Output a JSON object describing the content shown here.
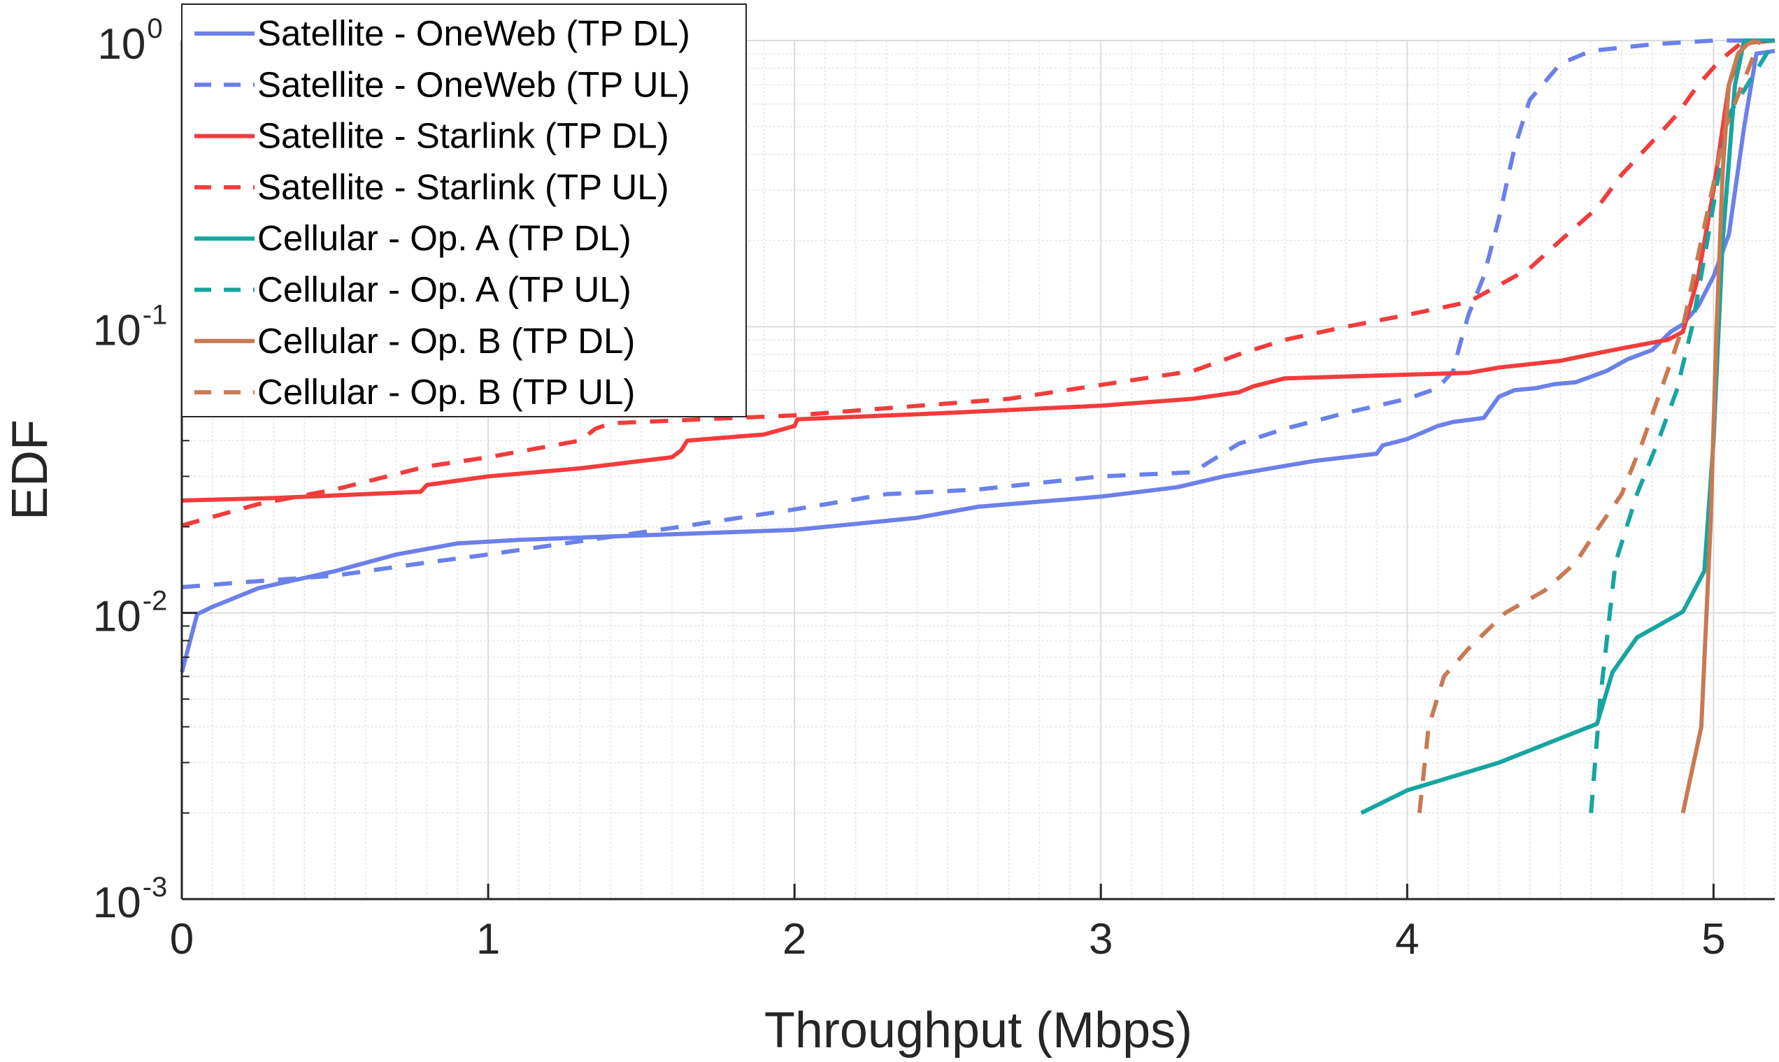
{
  "chart_data": {
    "type": "line",
    "title": "",
    "xlabel": "Throughput (Mbps)",
    "ylabel": "EDF",
    "xlim": [
      0,
      5.2
    ],
    "ylim": [
      0.001,
      1
    ],
    "yscale": "log",
    "grid": true,
    "legend_position": "top-left",
    "x_ticks": [
      {
        "value": 0,
        "label": "0"
      },
      {
        "value": 1,
        "label": "1"
      },
      {
        "value": 2,
        "label": "2"
      },
      {
        "value": 3,
        "label": "3"
      },
      {
        "value": 4,
        "label": "4"
      },
      {
        "value": 5,
        "label": "5"
      }
    ],
    "y_ticks": [
      {
        "value": 0.001,
        "base": "10",
        "exp": "-3"
      },
      {
        "value": 0.01,
        "base": "10",
        "exp": "-2"
      },
      {
        "value": 0.1,
        "base": "10",
        "exp": "-1"
      },
      {
        "value": 1,
        "base": "10",
        "exp": "0"
      }
    ],
    "series": [
      {
        "name": "Satellite - OneWeb (TP DL)",
        "color": "#6b80e8",
        "dash": "solid",
        "x": [
          0,
          0.03,
          0.05,
          0.1,
          0.25,
          0.5,
          0.7,
          0.9,
          1.1,
          1.4,
          1.7,
          2.0,
          2.4,
          2.6,
          3.0,
          3.25,
          3.4,
          3.7,
          3.9,
          3.92,
          4.0,
          4.1,
          4.15,
          4.25,
          4.3,
          4.35,
          4.42,
          4.48,
          4.55,
          4.65,
          4.72,
          4.8,
          4.86,
          4.9,
          4.95,
          5.0,
          5.05,
          5.1,
          5.14,
          5.2
        ],
        "y": [
          0.0062,
          0.0082,
          0.0099,
          0.0105,
          0.0122,
          0.014,
          0.016,
          0.0175,
          0.018,
          0.0185,
          0.019,
          0.0195,
          0.0215,
          0.0235,
          0.0255,
          0.0275,
          0.03,
          0.034,
          0.036,
          0.0385,
          0.0405,
          0.045,
          0.0465,
          0.048,
          0.057,
          0.06,
          0.061,
          0.063,
          0.064,
          0.07,
          0.077,
          0.083,
          0.096,
          0.102,
          0.118,
          0.15,
          0.21,
          0.5,
          0.9,
          0.92
        ]
      },
      {
        "name": "Satellite - OneWeb (TP UL)",
        "color": "#6b80e8",
        "dash": "dash",
        "x": [
          0,
          0.2,
          0.5,
          0.8,
          1.0,
          1.3,
          1.6,
          2.0,
          2.3,
          2.6,
          3.0,
          3.3,
          3.45,
          3.6,
          3.8,
          4.0,
          4.1,
          4.15,
          4.17,
          4.2,
          4.25,
          4.3,
          4.35,
          4.4,
          4.5,
          4.6,
          4.8,
          5.0,
          5.2
        ],
        "y": [
          0.0123,
          0.0128,
          0.0135,
          0.015,
          0.016,
          0.0178,
          0.0198,
          0.023,
          0.026,
          0.027,
          0.03,
          0.031,
          0.039,
          0.044,
          0.05,
          0.056,
          0.061,
          0.07,
          0.085,
          0.11,
          0.15,
          0.24,
          0.42,
          0.62,
          0.83,
          0.92,
          0.97,
          1.0,
          1.0
        ]
      },
      {
        "name": "Satellite - Starlink (TP DL)",
        "color": "#f23c3c",
        "dash": "solid",
        "x": [
          0,
          0.3,
          0.6,
          0.78,
          0.8,
          1.0,
          1.3,
          1.6,
          1.63,
          1.65,
          1.9,
          2.0,
          2.01,
          2.5,
          3.0,
          3.3,
          3.45,
          3.5,
          3.6,
          4.0,
          4.2,
          4.3,
          4.5,
          4.6,
          4.7,
          4.8,
          4.85,
          4.9,
          4.95,
          5.0,
          5.05,
          5.1,
          5.2
        ],
        "y": [
          0.0247,
          0.0252,
          0.026,
          0.0265,
          0.028,
          0.03,
          0.032,
          0.035,
          0.037,
          0.04,
          0.042,
          0.045,
          0.0475,
          0.05,
          0.053,
          0.056,
          0.059,
          0.062,
          0.066,
          0.068,
          0.069,
          0.072,
          0.076,
          0.08,
          0.084,
          0.088,
          0.09,
          0.096,
          0.15,
          0.3,
          0.7,
          0.98,
          1.0
        ]
      },
      {
        "name": "Satellite - Starlink (TP UL)",
        "color": "#f23c3c",
        "dash": "dash",
        "x": [
          0,
          0.25,
          0.5,
          0.8,
          1.0,
          1.3,
          1.35,
          1.4,
          2.0,
          2.7,
          3.3,
          3.45,
          3.6,
          3.8,
          4.0,
          4.2,
          4.4,
          4.5,
          4.62,
          4.7,
          4.78,
          4.88,
          4.95,
          5.02,
          5.1,
          5.2
        ],
        "y": [
          0.0202,
          0.024,
          0.027,
          0.0325,
          0.035,
          0.04,
          0.044,
          0.046,
          0.049,
          0.056,
          0.07,
          0.08,
          0.09,
          0.1,
          0.11,
          0.122,
          0.16,
          0.2,
          0.26,
          0.34,
          0.42,
          0.55,
          0.7,
          0.85,
          1.0,
          1.0
        ]
      },
      {
        "name": "Cellular - Op. A (TP DL)",
        "color": "#16a5a0",
        "dash": "solid",
        "x": [
          3.85,
          4.0,
          4.3,
          4.62,
          4.67,
          4.75,
          4.9,
          4.97,
          5.0,
          5.03,
          5.07,
          5.1,
          5.2
        ],
        "y": [
          0.002,
          0.0024,
          0.003,
          0.0041,
          0.0062,
          0.0082,
          0.0101,
          0.014,
          0.04,
          0.2,
          0.7,
          1.0,
          1.0
        ]
      },
      {
        "name": "Cellular - Op. A (TP UL)",
        "color": "#16a5a0",
        "dash": "dash",
        "x": [
          4.6,
          4.63,
          4.68,
          4.75,
          4.82,
          4.88,
          4.93,
          4.98,
          5.05,
          5.2
        ],
        "y": [
          0.002,
          0.005,
          0.015,
          0.026,
          0.04,
          0.06,
          0.1,
          0.2,
          0.55,
          1.0
        ]
      },
      {
        "name": "Cellular - Op. B (TP DL)",
        "color": "#c87a52",
        "dash": "solid",
        "x": [
          4.9,
          4.96,
          4.99,
          5.01,
          5.03,
          5.05,
          5.08,
          5.11,
          5.14
        ],
        "y": [
          0.002,
          0.004,
          0.02,
          0.1,
          0.35,
          0.7,
          0.9,
          0.97,
          1.0
        ]
      },
      {
        "name": "Cellular - Op. B (TP UL)",
        "color": "#c87a52",
        "dash": "dash",
        "x": [
          4.04,
          4.07,
          4.12,
          4.2,
          4.32,
          4.45,
          4.55,
          4.62,
          4.7,
          4.77,
          4.85,
          4.9,
          4.96,
          5.04,
          5.15
        ],
        "y": [
          0.002,
          0.004,
          0.006,
          0.0075,
          0.01,
          0.012,
          0.015,
          0.0195,
          0.026,
          0.04,
          0.07,
          0.1,
          0.2,
          0.5,
          1.0
        ]
      }
    ]
  }
}
